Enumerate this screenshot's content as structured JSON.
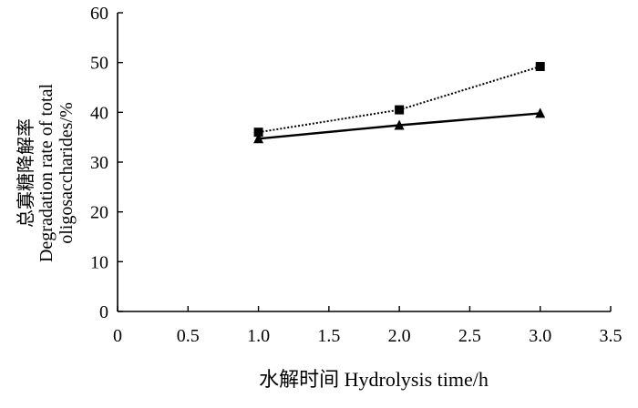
{
  "chart_data": {
    "type": "line",
    "x": [
      1.0,
      2.0,
      3.0
    ],
    "series": [
      {
        "name": "",
        "marker": "square",
        "line_style": "dotted",
        "values": [
          36.0,
          40.5,
          49.2
        ]
      },
      {
        "name": "",
        "marker": "triangle",
        "line_style": "solid",
        "values": [
          34.7,
          37.4,
          39.8
        ]
      }
    ],
    "xlabel": "水解时间 Hydrolysis time/h",
    "ylabel_lines": [
      "总寡糖降解率",
      "Degradation rate of total",
      "oligosaccharides/%"
    ],
    "xlim": [
      0,
      3.5
    ],
    "ylim": [
      0,
      60
    ],
    "xticks": [
      "0",
      "0.5",
      "1.0",
      "1.5",
      "2.0",
      "2.5",
      "3.0",
      "3.5"
    ],
    "yticks": [
      "0",
      "10",
      "20",
      "30",
      "40",
      "50",
      "60"
    ],
    "grid": false,
    "legend": "none"
  },
  "colors": {
    "line": "#000000",
    "background": "#ffffff"
  }
}
